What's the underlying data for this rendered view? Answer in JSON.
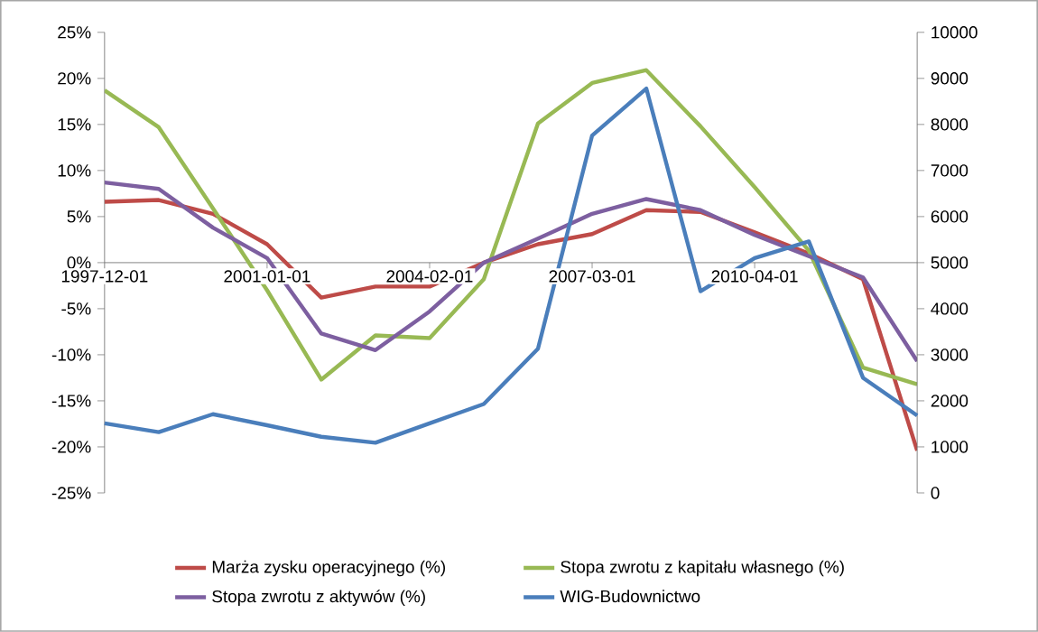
{
  "chart_data": {
    "type": "line",
    "categories": [
      "1997-12-01",
      null,
      null,
      "2001-01-01",
      null,
      null,
      "2004-02-01",
      null,
      null,
      "2007-03-01",
      null,
      null,
      "2010-04-01",
      null,
      null,
      null
    ],
    "series": [
      {
        "name": "Marża zysku operacyjnego (%)",
        "color": "#be4b48",
        "values": [
          6.6,
          6.8,
          5.3,
          2.0,
          -3.8,
          -2.6,
          -2.6,
          0,
          2.0,
          3.1,
          5.7,
          5.5,
          3.3,
          1.0,
          -1.8,
          -20.4
        ]
      },
      {
        "name": "Stopa zwrotu z kapitału własnego (%)",
        "color": "#98b954",
        "values": [
          18.7,
          14.7,
          5.9,
          -3.0,
          -12.7,
          -7.9,
          -8.2,
          -1.8,
          15.1,
          19.5,
          20.9,
          14.8,
          8.2,
          1.3,
          -11.4,
          -13.2
        ]
      },
      {
        "name": "Stopa zwrotu z aktywów (%)",
        "color": "#7d5fa0",
        "values": [
          8.7,
          8.0,
          3.8,
          0.5,
          -7.7,
          -9.5,
          -5.3,
          0,
          2.6,
          5.3,
          6.9,
          5.7,
          3.0,
          0.7,
          -1.6,
          -10.7
        ]
      },
      {
        "name": "WIG-Budownictwo",
        "color": "#4a7ebb",
        "axis": "y2",
        "values": [
          1510,
          1320,
          1710,
          1470,
          1220,
          1090,
          1510,
          1930,
          3130,
          7760,
          8780,
          4380,
          5100,
          5460,
          2500,
          1680
        ]
      }
    ],
    "ylim": [
      -25,
      25
    ],
    "yticks": [
      {
        "value": -25,
        "label": "-25%"
      },
      {
        "value": -20,
        "label": "-20%"
      },
      {
        "value": -15,
        "label": "-15%"
      },
      {
        "value": -10,
        "label": "-10%"
      },
      {
        "value": -5,
        "label": "-5%"
      },
      {
        "value": 0,
        "label": "0%"
      },
      {
        "value": 5,
        "label": "5%"
      },
      {
        "value": 10,
        "label": "10%"
      },
      {
        "value": 15,
        "label": "15%"
      },
      {
        "value": 20,
        "label": "20%"
      },
      {
        "value": 25,
        "label": "25%"
      }
    ],
    "y2lim": [
      0,
      10000
    ],
    "y2ticks": [
      0,
      1000,
      2000,
      3000,
      4000,
      5000,
      6000,
      7000,
      8000,
      9000,
      10000
    ],
    "legend": "bottom"
  }
}
